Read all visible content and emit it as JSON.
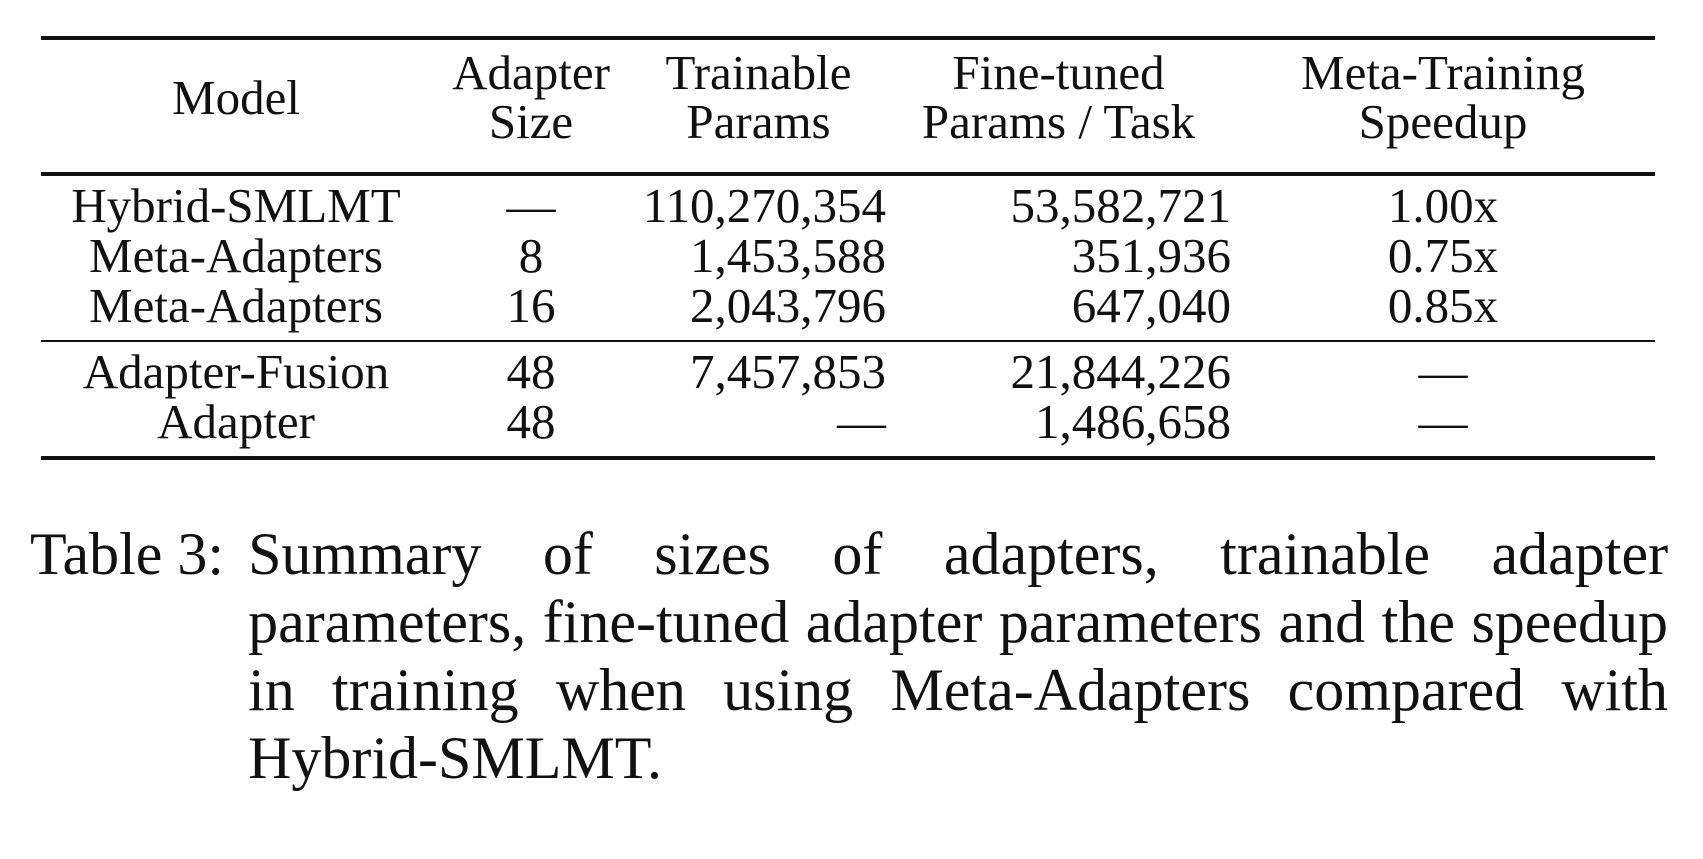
{
  "table": {
    "headers": [
      {
        "line1": "Model",
        "line2": ""
      },
      {
        "line1": "Adapter",
        "line2": "Size"
      },
      {
        "line1": "Trainable",
        "line2": "Params"
      },
      {
        "line1": "Fine-tuned",
        "line2": "Params / Task"
      },
      {
        "line1": "Meta-Training",
        "line2": "Speedup"
      }
    ],
    "groups": [
      [
        {
          "model": "Hybrid-SMLMT",
          "size": "—",
          "trainable": "110,270,354",
          "finetuned": "53,582,721",
          "speedup": "1.00x"
        },
        {
          "model": "Meta-Adapters",
          "size": "8",
          "trainable": "1,453,588",
          "finetuned": "351,936",
          "speedup": "0.75x"
        },
        {
          "model": "Meta-Adapters",
          "size": "16",
          "trainable": "2,043,796",
          "finetuned": "647,040",
          "speedup": "0.85x"
        }
      ],
      [
        {
          "model": "Adapter-Fusion",
          "size": "48",
          "trainable": "7,457,853",
          "finetuned": "21,844,226",
          "speedup": "—"
        },
        {
          "model": "Adapter",
          "size": "48",
          "trainable": "—",
          "finetuned": "1,486,658",
          "speedup": "—"
        }
      ]
    ]
  },
  "caption": {
    "label": "Table 3:",
    "text": "Summary of sizes of adapters, trainable adapter parameters, fine-tuned adapter parameters and the speedup in training when using Meta-Adapters compared with Hybrid-SMLMT."
  }
}
